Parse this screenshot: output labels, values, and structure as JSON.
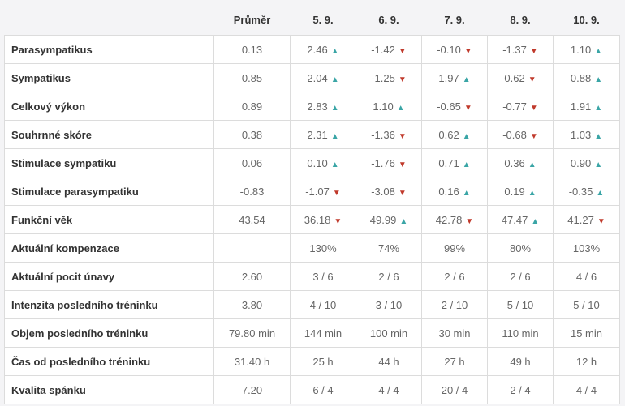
{
  "table": {
    "headers": [
      "",
      "Průměr",
      "5. 9.",
      "6. 9.",
      "7. 9.",
      "8. 9.",
      "10. 9."
    ],
    "rows": [
      {
        "label": "Parasympatikus",
        "avg": "0.13",
        "cells": [
          {
            "v": "2.46",
            "t": "up"
          },
          {
            "v": "-1.42",
            "t": "down"
          },
          {
            "v": "-0.10",
            "t": "down"
          },
          {
            "v": "-1.37",
            "t": "down"
          },
          {
            "v": "1.10",
            "t": "up"
          }
        ]
      },
      {
        "label": "Sympatikus",
        "avg": "0.85",
        "cells": [
          {
            "v": "2.04",
            "t": "up"
          },
          {
            "v": "-1.25",
            "t": "down"
          },
          {
            "v": "1.97",
            "t": "up"
          },
          {
            "v": "0.62",
            "t": "down"
          },
          {
            "v": "0.88",
            "t": "up"
          }
        ]
      },
      {
        "label": "Celkový výkon",
        "avg": "0.89",
        "cells": [
          {
            "v": "2.83",
            "t": "up"
          },
          {
            "v": "1.10",
            "t": "up"
          },
          {
            "v": "-0.65",
            "t": "down"
          },
          {
            "v": "-0.77",
            "t": "down"
          },
          {
            "v": "1.91",
            "t": "up"
          }
        ]
      },
      {
        "label": "Souhrnné skóre",
        "avg": "0.38",
        "cells": [
          {
            "v": "2.31",
            "t": "up"
          },
          {
            "v": "-1.36",
            "t": "down"
          },
          {
            "v": "0.62",
            "t": "up"
          },
          {
            "v": "-0.68",
            "t": "down"
          },
          {
            "v": "1.03",
            "t": "up"
          }
        ]
      },
      {
        "label": "Stimulace sympatiku",
        "avg": "0.06",
        "cells": [
          {
            "v": "0.10",
            "t": "up"
          },
          {
            "v": "-1.76",
            "t": "down"
          },
          {
            "v": "0.71",
            "t": "up"
          },
          {
            "v": "0.36",
            "t": "up"
          },
          {
            "v": "0.90",
            "t": "up"
          }
        ]
      },
      {
        "label": "Stimulace parasympatiku",
        "avg": "-0.83",
        "cells": [
          {
            "v": "-1.07",
            "t": "down"
          },
          {
            "v": "-3.08",
            "t": "down"
          },
          {
            "v": "0.16",
            "t": "up"
          },
          {
            "v": "0.19",
            "t": "up"
          },
          {
            "v": "-0.35",
            "t": "up"
          }
        ]
      },
      {
        "label": "Funkční věk",
        "avg": "43.54",
        "cells": [
          {
            "v": "36.18",
            "t": "down"
          },
          {
            "v": "49.99",
            "t": "up"
          },
          {
            "v": "42.78",
            "t": "down"
          },
          {
            "v": "47.47",
            "t": "up"
          },
          {
            "v": "41.27",
            "t": "down"
          }
        ]
      },
      {
        "label": "Aktuální kompenzace",
        "avg": "",
        "cells": [
          {
            "v": "130%"
          },
          {
            "v": "74%"
          },
          {
            "v": "99%"
          },
          {
            "v": "80%"
          },
          {
            "v": "103%"
          }
        ]
      },
      {
        "label": "Aktuální pocit únavy",
        "avg": "2.60",
        "cells": [
          {
            "v": "3 / 6"
          },
          {
            "v": "2 / 6"
          },
          {
            "v": "2 / 6"
          },
          {
            "v": "2 / 6"
          },
          {
            "v": "4 / 6"
          }
        ]
      },
      {
        "label": "Intenzita posledního tréninku",
        "avg": "3.80",
        "cells": [
          {
            "v": "4 / 10"
          },
          {
            "v": "3 / 10"
          },
          {
            "v": "2 / 10"
          },
          {
            "v": "5 / 10"
          },
          {
            "v": "5 / 10"
          }
        ]
      },
      {
        "label": "Objem posledního tréninku",
        "avg": "79.80 min",
        "cells": [
          {
            "v": "144 min"
          },
          {
            "v": "100 min"
          },
          {
            "v": "30 min"
          },
          {
            "v": "110 min"
          },
          {
            "v": "15 min"
          }
        ]
      },
      {
        "label": "Čas od posledního tréninku",
        "avg": "31.40 h",
        "cells": [
          {
            "v": "25 h"
          },
          {
            "v": "44 h"
          },
          {
            "v": "27 h"
          },
          {
            "v": "49 h"
          },
          {
            "v": "12 h"
          }
        ]
      },
      {
        "label": "Kvalita spánku",
        "avg": "7.20",
        "cells": [
          {
            "v": "6 / 4"
          },
          {
            "v": "4 / 4"
          },
          {
            "v": "20 / 4"
          },
          {
            "v": "2 / 4"
          },
          {
            "v": "4 / 4"
          }
        ]
      }
    ]
  },
  "icons": {
    "up": "triangle-up-icon",
    "down": "triangle-down-icon"
  },
  "colors": {
    "up": "#3aa5a6",
    "down": "#c0392b"
  }
}
